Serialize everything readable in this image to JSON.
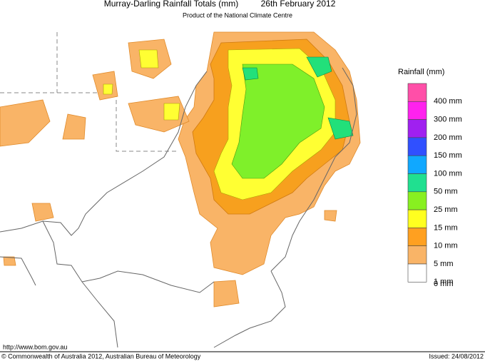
{
  "header": {
    "title": "Murray-Darling Rainfall Totals (mm)",
    "date": "26th February 2012",
    "subtitle": "Product of the National Climate Centre"
  },
  "legend": {
    "title": "Rainfall (mm)",
    "items": [
      {
        "label": "400 mm",
        "color": "#ff4fa8"
      },
      {
        "label": "300 mm",
        "color": "#ff22ee"
      },
      {
        "label": "200 mm",
        "color": "#a020f0"
      },
      {
        "label": "150 mm",
        "color": "#3050ff"
      },
      {
        "label": "100 mm",
        "color": "#10a8ff"
      },
      {
        "label": "50 mm",
        "color": "#20e090"
      },
      {
        "label": "25 mm",
        "color": "#88f020"
      },
      {
        "label": "15 mm",
        "color": "#ffff20"
      },
      {
        "label": "10 mm",
        "color": "#ffa020"
      },
      {
        "label": "5 mm",
        "color": "#f9b467"
      },
      {
        "label": "1 mm",
        "color": "#ffffff"
      }
    ],
    "bottom_label": "0 mm"
  },
  "footer": {
    "url": "http://www.bom.gov.au",
    "copyright": "© Commonwealth of Australia 2012, Australian Bureau of Meteorology",
    "issued": "Issued: 24/08/2012"
  }
}
